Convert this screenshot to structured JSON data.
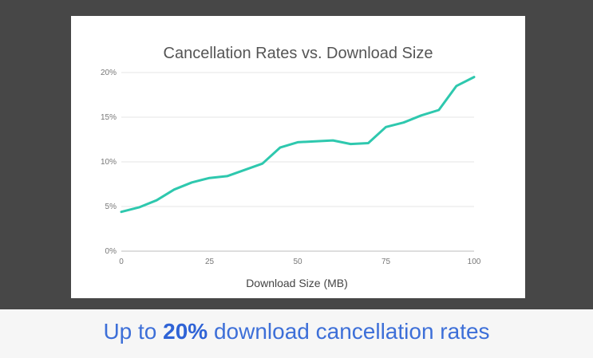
{
  "caption": {
    "prefix": "Up to ",
    "highlight": "20%",
    "suffix": " download cancellation rates"
  },
  "chart_data": {
    "type": "line",
    "title": "Cancellation Rates vs. Download Size",
    "xlabel": "Download Size (MB)",
    "ylabel": "",
    "xlim": [
      0,
      100
    ],
    "ylim": [
      0,
      20
    ],
    "x_ticks": [
      0,
      25,
      50,
      75,
      100
    ],
    "y_ticks": [
      0,
      5,
      10,
      15,
      20
    ],
    "y_tick_labels": [
      "0%",
      "5%",
      "10%",
      "15%",
      "20%"
    ],
    "grid": true,
    "line_color": "#2ec8ae",
    "series": [
      {
        "x": [
          0,
          5,
          10,
          15,
          20,
          25,
          30,
          35,
          40,
          45,
          50,
          55,
          60,
          65,
          70,
          75,
          80,
          85,
          90,
          95,
          100
        ],
        "values": [
          4.4,
          4.9,
          5.7,
          6.9,
          7.7,
          8.2,
          8.4,
          9.1,
          9.8,
          11.6,
          12.2,
          12.3,
          12.4,
          12.0,
          12.1,
          13.9,
          14.4,
          15.2,
          15.8,
          18.5,
          19.5
        ]
      }
    ]
  }
}
